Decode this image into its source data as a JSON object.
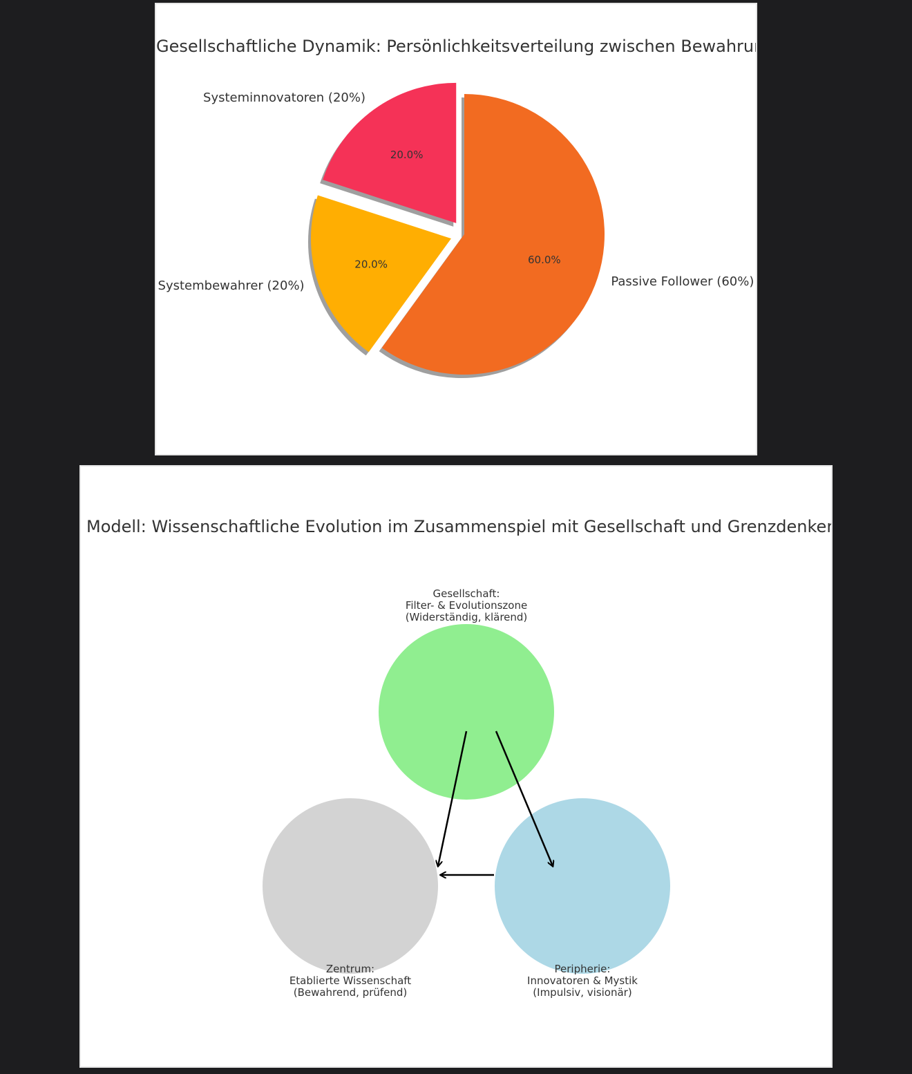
{
  "chart_data": [
    {
      "type": "pie",
      "title": "Gesellschaftliche Dynamik: Persönlichkeitsverteilung zwischen Bewahrung und Innovation",
      "slices": [
        {
          "label": "Systeminnovatoren (20%)",
          "value": 20,
          "pct_label": "20.0%",
          "color": "#f53257",
          "exploded": true
        },
        {
          "label": "Systembewahrer (20%)",
          "value": 20,
          "pct_label": "20.0%",
          "color": "#ffae02",
          "exploded": true
        },
        {
          "label": "Passive Follower (60%)",
          "value": 60,
          "pct_label": "60.0%",
          "color": "#f26b21",
          "exploded": false
        }
      ],
      "shadow": true,
      "start_angle": 90
    },
    {
      "type": "diagram",
      "title": "Modell: Wissenschaftliche Evolution im Zusammenspiel mit Gesellschaft und Grenzdenkern",
      "nodes": [
        {
          "id": "gesellschaft",
          "lines": [
            "Gesellschaft:",
            "Filter- & Evolutionszone",
            "(Widerständig, klärend)"
          ],
          "color": "#90ee90"
        },
        {
          "id": "zentrum",
          "lines": [
            "Zentrum:",
            "Etablierte Wissenschaft",
            "(Bewahrend, prüfend)"
          ],
          "color": "#d3d3d3"
        },
        {
          "id": "peripherie",
          "lines": [
            "Peripherie:",
            "Innovatoren & Mystik",
            "(Impulsiv, visionär)"
          ],
          "color": "#add8e6"
        }
      ],
      "edges": [
        {
          "from": "gesellschaft",
          "to": "zentrum"
        },
        {
          "from": "gesellschaft",
          "to": "peripherie"
        },
        {
          "from": "peripherie",
          "to": "zentrum"
        }
      ]
    }
  ]
}
